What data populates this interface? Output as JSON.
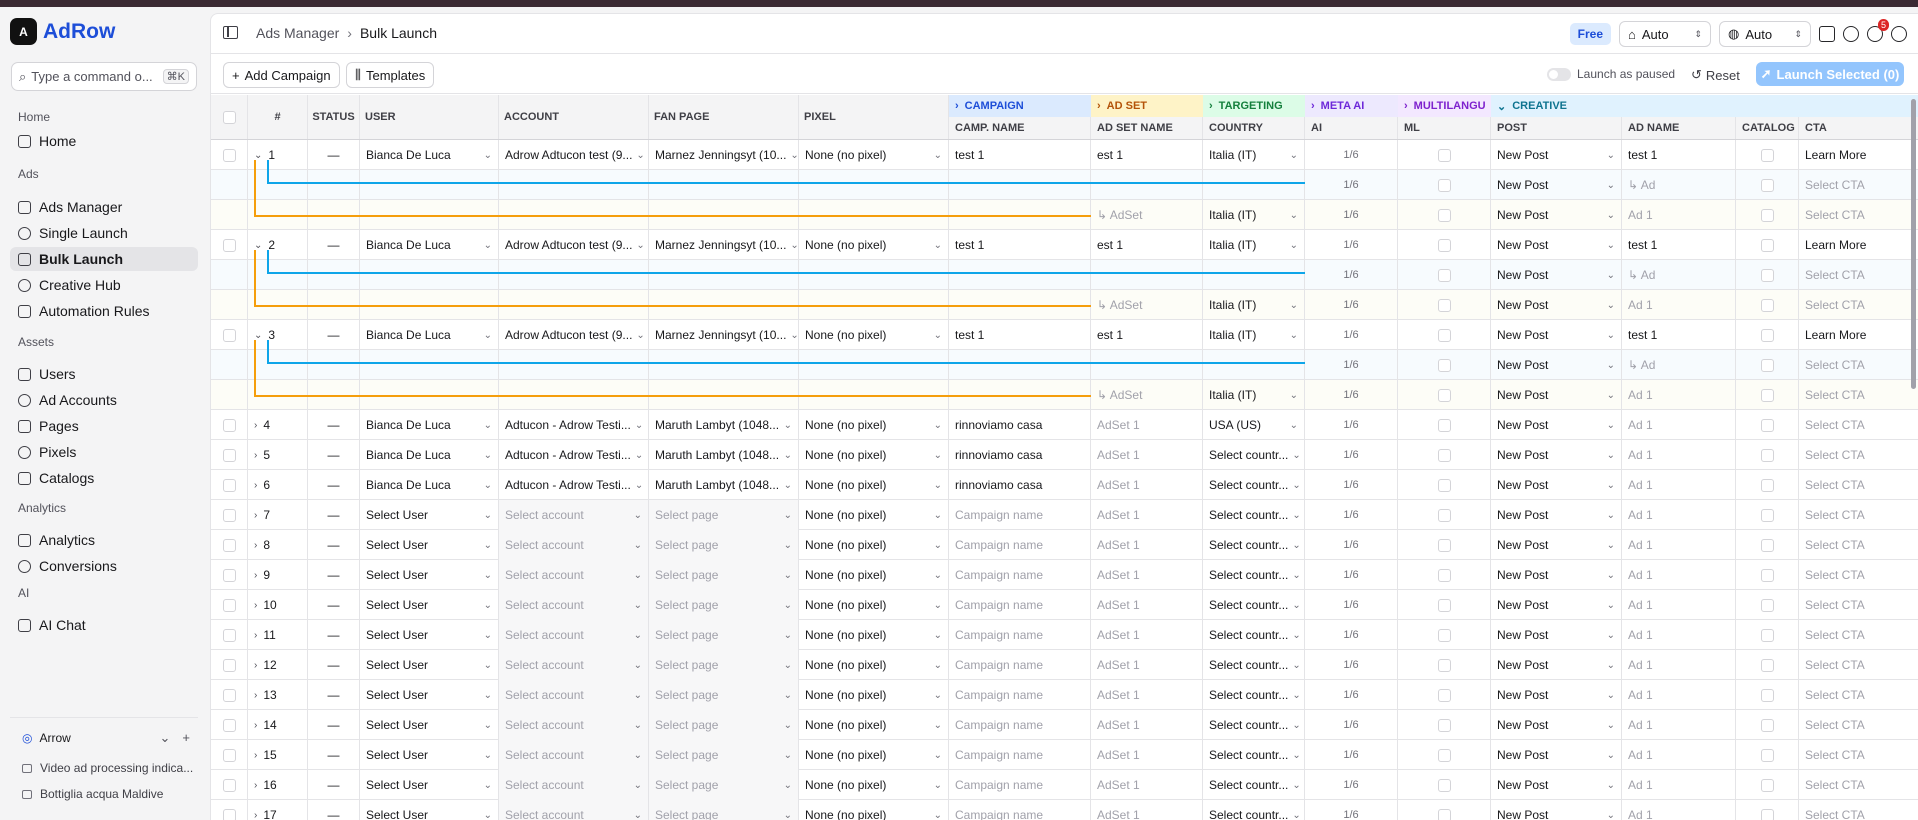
{
  "app": {
    "name": "AdRow",
    "logo_mark": "A"
  },
  "command": {
    "placeholder": "Type a command o...",
    "shortcut": "⌘K"
  },
  "sidebar": {
    "sections": [
      {
        "label": "Home",
        "items": [
          {
            "label": "Home",
            "icon": "home-icon"
          }
        ]
      },
      {
        "label": "Ads",
        "items": [
          {
            "label": "Ads Manager",
            "icon": "layout-icon"
          },
          {
            "label": "Single Launch",
            "icon": "plus-circle-icon"
          },
          {
            "label": "Bulk Launch",
            "icon": "rocket-icon",
            "active": true
          },
          {
            "label": "Creative Hub",
            "icon": "palette-icon"
          },
          {
            "label": "Automation Rules",
            "icon": "zap-icon"
          }
        ]
      },
      {
        "label": "Assets",
        "items": [
          {
            "label": "Users",
            "icon": "users-icon"
          },
          {
            "label": "Ad Accounts",
            "icon": "wallet-icon"
          },
          {
            "label": "Pages",
            "icon": "page-icon"
          },
          {
            "label": "Pixels",
            "icon": "pixel-icon"
          },
          {
            "label": "Catalogs",
            "icon": "catalog-icon"
          }
        ]
      },
      {
        "label": "Analytics",
        "items": [
          {
            "label": "Analytics",
            "icon": "trend-icon"
          },
          {
            "label": "Conversions",
            "icon": "conversions-icon"
          }
        ]
      },
      {
        "label": "AI",
        "items": [
          {
            "label": "AI Chat",
            "icon": "chat-icon"
          }
        ]
      }
    ],
    "workspace": "Arrow",
    "recent": [
      "Video ad processing indica...",
      "Bottiglia acqua Maldive"
    ]
  },
  "header": {
    "crumb_parent": "Ads Manager",
    "crumb_sep": "›",
    "crumb_current": "Bulk Launch",
    "plan": "Free",
    "select1": "Auto",
    "select2": "Auto",
    "notif_count": "5"
  },
  "toolbar": {
    "add_campaign": "Add Campaign",
    "templates": "Templates",
    "launch_paused": "Launch as paused",
    "reset": "Reset",
    "launch_selected": "Launch Selected (0)"
  },
  "groups": [
    {
      "label": "CAMPAIGN",
      "chev": "›",
      "color": "#1d4ed8",
      "bg": "#dbeafe"
    },
    {
      "label": "AD SET",
      "chev": "›",
      "color": "#b45309",
      "bg": "#fef3c7"
    },
    {
      "label": "TARGETING",
      "chev": "›",
      "color": "#15803d",
      "bg": "#dcfce7"
    },
    {
      "label": "META AI",
      "chev": "›",
      "color": "#6d28d9",
      "bg": "#ede9fe"
    },
    {
      "label": "MULTILANGU",
      "chev": "›",
      "color": "#7e22ce",
      "bg": "#f3e8ff"
    },
    {
      "label": "CREATIVE",
      "chev": "⌄",
      "color": "#0e7490",
      "bg": "#e0f2fe"
    }
  ],
  "columns": {
    "hash": "#",
    "status": "STATUS",
    "user": "USER",
    "account": "ACCOUNT",
    "fan_page": "FAN PAGE",
    "pixel": "PIXEL",
    "camp_name": "CAMP. NAME",
    "adset_name": "AD SET NAME",
    "country": "COUNTRY",
    "ai": "AI",
    "ml": "ML",
    "post": "POST",
    "ad_name": "AD NAME",
    "catalog": "CATALOG",
    "cta": "CTA"
  },
  "rows": [
    {
      "kind": "main",
      "num": "1",
      "status": "—",
      "user": "Bianca De Luca",
      "account": "Adrow Adtucon test (9...",
      "page": "Marnez Jenningsyt (10...",
      "pixel": "None (no pixel)",
      "camp": "test 1",
      "adset": "est 1",
      "country": "Italia (IT)",
      "ai": "1/6",
      "post": "New Post",
      "ad": "test 1",
      "cta": "Learn More",
      "expanded": true
    },
    {
      "kind": "ad",
      "ai": "1/6",
      "post": "New Post",
      "ad": "↳ Ad",
      "cta": "Select CTA"
    },
    {
      "kind": "adset",
      "adset": "↳ AdSet",
      "country": "Italia (IT)",
      "ai": "1/6",
      "post": "New Post",
      "ad": "Ad 1",
      "cta": "Select CTA"
    },
    {
      "kind": "main",
      "num": "2",
      "status": "—",
      "user": "Bianca De Luca",
      "account": "Adrow Adtucon test (9...",
      "page": "Marnez Jenningsyt (10...",
      "pixel": "None (no pixel)",
      "camp": "test 1",
      "adset": "est 1",
      "country": "Italia (IT)",
      "ai": "1/6",
      "post": "New Post",
      "ad": "test 1",
      "cta": "Learn More",
      "expanded": true
    },
    {
      "kind": "ad",
      "ai": "1/6",
      "post": "New Post",
      "ad": "↳ Ad",
      "cta": "Select CTA"
    },
    {
      "kind": "adset",
      "adset": "↳ AdSet",
      "country": "Italia (IT)",
      "ai": "1/6",
      "post": "New Post",
      "ad": "Ad 1",
      "cta": "Select CTA"
    },
    {
      "kind": "main",
      "num": "3",
      "status": "—",
      "user": "Bianca De Luca",
      "account": "Adrow Adtucon test (9...",
      "page": "Marnez Jenningsyt (10...",
      "pixel": "None (no pixel)",
      "camp": "test 1",
      "adset": "est 1",
      "country": "Italia (IT)",
      "ai": "1/6",
      "post": "New Post",
      "ad": "test 1",
      "cta": "Learn More",
      "expanded": true
    },
    {
      "kind": "ad",
      "ai": "1/6",
      "post": "New Post",
      "ad": "↳ Ad",
      "cta": "Select CTA"
    },
    {
      "kind": "adset",
      "adset": "↳ AdSet",
      "country": "Italia (IT)",
      "ai": "1/6",
      "post": "New Post",
      "ad": "Ad 1",
      "cta": "Select CTA"
    },
    {
      "kind": "main",
      "num": "4",
      "status": "—",
      "user": "Bianca De Luca",
      "account": "Adtucon - Adrow Testi...",
      "page": "Maruth Lambyt (1048...",
      "pixel": "None (no pixel)",
      "camp": "rinnoviamo casa",
      "adset": "AdSet 1",
      "adset_muted": true,
      "country": "USA (US)",
      "ai": "1/6",
      "post": "New Post",
      "ad": "Ad 1",
      "ad_muted": true,
      "cta": "Select CTA"
    },
    {
      "kind": "main",
      "num": "5",
      "status": "—",
      "user": "Bianca De Luca",
      "account": "Adtucon - Adrow Testi...",
      "page": "Maruth Lambyt (1048...",
      "pixel": "None (no pixel)",
      "camp": "rinnoviamo casa",
      "adset": "AdSet 1",
      "adset_muted": true,
      "country": "Select countr...",
      "ai": "1/6",
      "post": "New Post",
      "ad": "Ad 1",
      "ad_muted": true,
      "cta": "Select CTA"
    },
    {
      "kind": "main",
      "num": "6",
      "status": "—",
      "user": "Bianca De Luca",
      "account": "Adtucon - Adrow Testi...",
      "page": "Maruth Lambyt (1048...",
      "pixel": "None (no pixel)",
      "camp": "rinnoviamo casa",
      "adset": "AdSet 1",
      "adset_muted": true,
      "country": "Select countr...",
      "ai": "1/6",
      "post": "New Post",
      "ad": "Ad 1",
      "ad_muted": true,
      "cta": "Select CTA"
    },
    {
      "kind": "empty",
      "num": "7"
    },
    {
      "kind": "empty",
      "num": "8"
    },
    {
      "kind": "empty",
      "num": "9"
    },
    {
      "kind": "empty",
      "num": "10"
    },
    {
      "kind": "empty",
      "num": "11"
    },
    {
      "kind": "empty",
      "num": "12"
    },
    {
      "kind": "empty",
      "num": "13"
    },
    {
      "kind": "empty",
      "num": "14"
    },
    {
      "kind": "empty",
      "num": "15"
    },
    {
      "kind": "empty",
      "num": "16"
    },
    {
      "kind": "empty",
      "num": "17"
    }
  ],
  "empty_row": {
    "status": "—",
    "user": "Select User",
    "account": "Select account",
    "page": "Select page",
    "pixel": "None (no pixel)",
    "camp": "Campaign name",
    "adset": "AdSet 1",
    "country": "Select countr...",
    "ai": "1/6",
    "post": "New Post",
    "ad": "Ad 1",
    "cta": "Select CTA"
  }
}
